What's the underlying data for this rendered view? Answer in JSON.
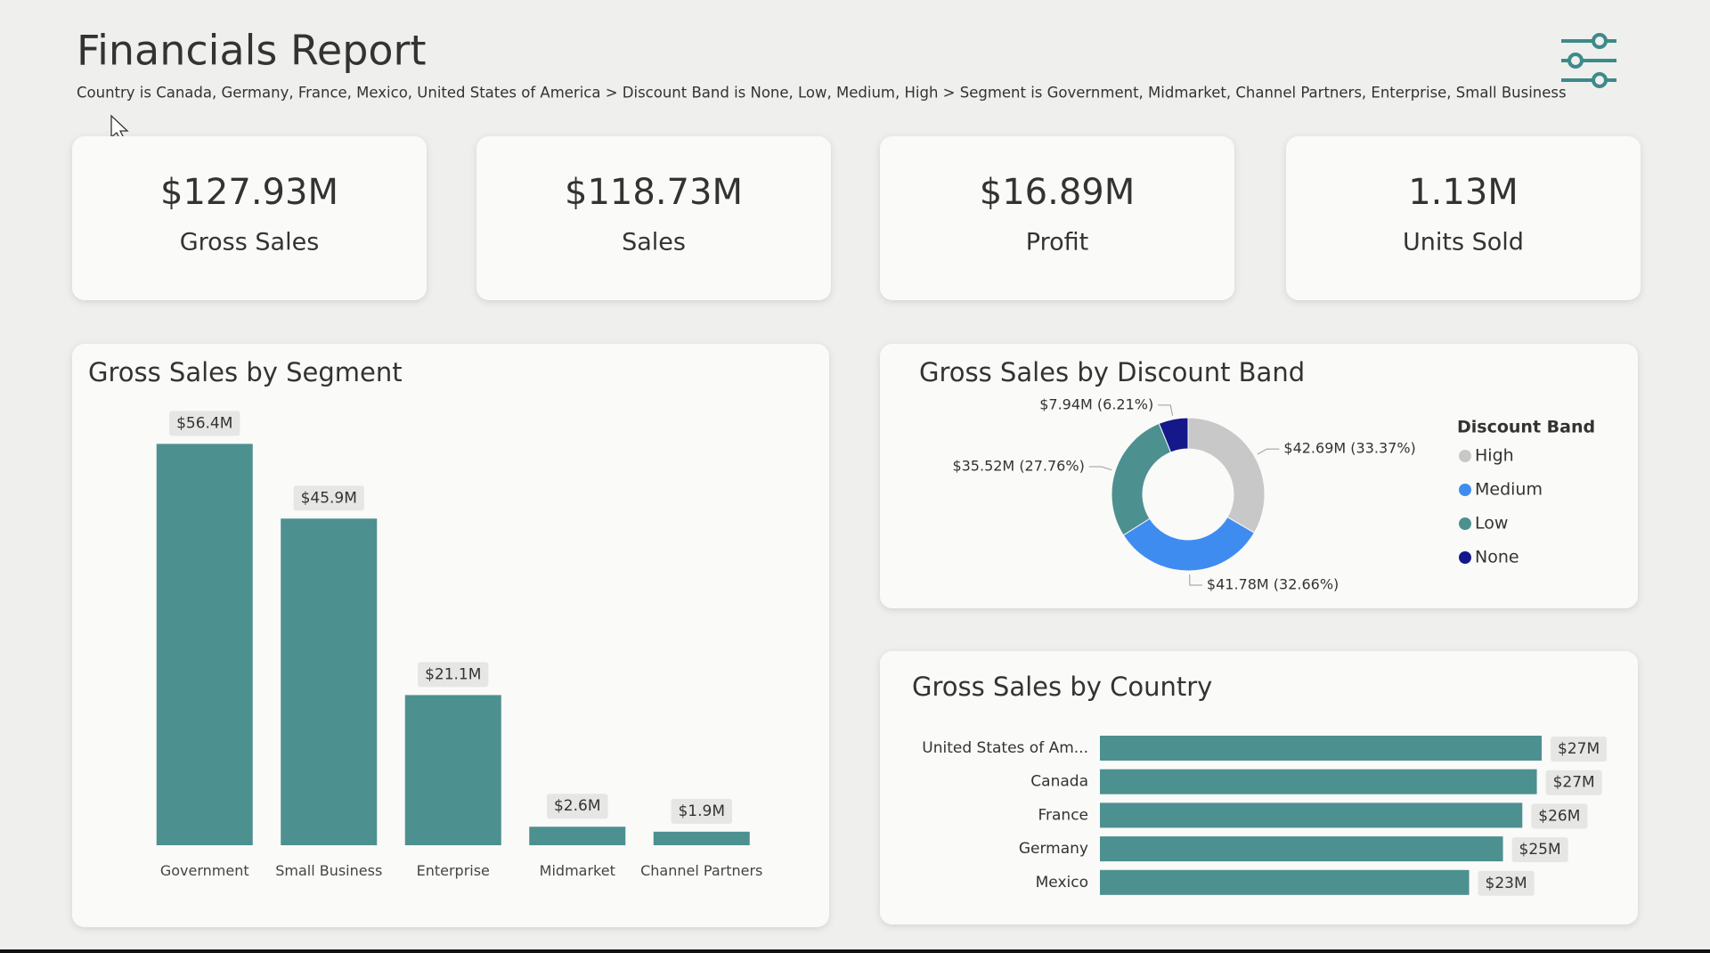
{
  "header": {
    "title": "Financials Report",
    "filters": "Country is Canada, Germany, France, Mexico, United States of America > Discount Band is None, Low, Medium, High > Segment is Government, Midmarket, Channel Partners, Enterprise, Small Business"
  },
  "kpis": [
    {
      "value": "$127.93M",
      "label": "Gross Sales"
    },
    {
      "value": "$118.73M",
      "label": "Sales"
    },
    {
      "value": "$16.89M",
      "label": "Profit"
    },
    {
      "value": "1.13M",
      "label": "Units Sold"
    }
  ],
  "chart_data": [
    {
      "type": "column",
      "title": "Gross Sales by Segment",
      "categories": [
        "Government",
        "Small Business",
        "Enterprise",
        "Midmarket",
        "Channel Partners"
      ],
      "values": [
        56.4,
        45.9,
        21.1,
        2.6,
        1.9
      ],
      "value_labels": [
        "$56.4M",
        "$45.9M",
        "$21.1M",
        "$2.6M",
        "$1.9M"
      ],
      "color": "#4d9090"
    },
    {
      "type": "donut",
      "title": "Gross Sales by Discount Band",
      "legend_title": "Discount Band",
      "legend": "right",
      "categories": [
        "High",
        "Medium",
        "Low",
        "None"
      ],
      "values": [
        42.69,
        41.78,
        35.52,
        7.94
      ],
      "value_labels": [
        "$42.69M (33.37%)",
        "$41.78M (32.66%)",
        "$35.52M (27.76%)",
        "$7.94M (6.21%)"
      ],
      "colors": [
        "#c8c8c8",
        "#3f8cf0",
        "#4d9090",
        "#15188a"
      ]
    },
    {
      "type": "bar",
      "title": "Gross Sales by Country",
      "categories": [
        "United States of Am...",
        "Canada",
        "France",
        "Germany",
        "Mexico"
      ],
      "values": [
        27.4,
        27.1,
        26.2,
        25.0,
        22.9
      ],
      "value_labels": [
        "$27M",
        "$27M",
        "$26M",
        "$25M",
        "$23M"
      ],
      "color": "#4d9090"
    }
  ]
}
